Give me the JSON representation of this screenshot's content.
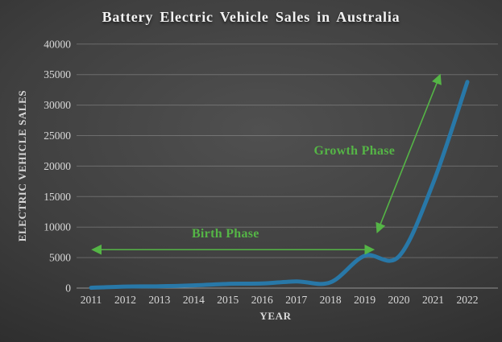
{
  "slide": {
    "background_center_color": "#505050",
    "background_edge_color": "#191919"
  },
  "chart_data": {
    "type": "line",
    "title": "Battery Electric Vehicle Sales in Australia",
    "xlabel": "YEAR",
    "ylabel": "ELECTRIC VEHICLE SALES",
    "categories": [
      "2011",
      "2012",
      "2013",
      "2014",
      "2015",
      "2016",
      "2017",
      "2018",
      "2019",
      "2020",
      "2021",
      "2022"
    ],
    "values": [
      50,
      250,
      300,
      450,
      700,
      750,
      1100,
      950,
      5300,
      5200,
      17200,
      33800
    ],
    "ylim": [
      0,
      40000
    ],
    "ytick_step": 5000,
    "yticks": [
      "0",
      "5000",
      "10000",
      "15000",
      "20000",
      "25000",
      "30000",
      "35000",
      "40000"
    ],
    "grid": true,
    "legend": "none",
    "smoothed_line": true,
    "line_color": "#2878A8",
    "tick_label_color": "#D9D9D9",
    "grid_color": "#FFFFFF",
    "annotation_color": "#55B546",
    "annotations": [
      {
        "text": "Birth Phase",
        "shape": "double-headed-arrow",
        "label_year": 2014.93,
        "label_value": 8300,
        "arrow": {
          "year1": 2011.05,
          "value1": 6300,
          "year2": 2019.25,
          "value2": 6300
        }
      },
      {
        "text": "Growth Phase",
        "shape": "double-headed-arrow",
        "label_year": 2018.7,
        "label_value": 21900,
        "arrow": {
          "year1": 2019.37,
          "value1": 9200,
          "year2": 2021.2,
          "value2": 34900
        }
      }
    ]
  }
}
